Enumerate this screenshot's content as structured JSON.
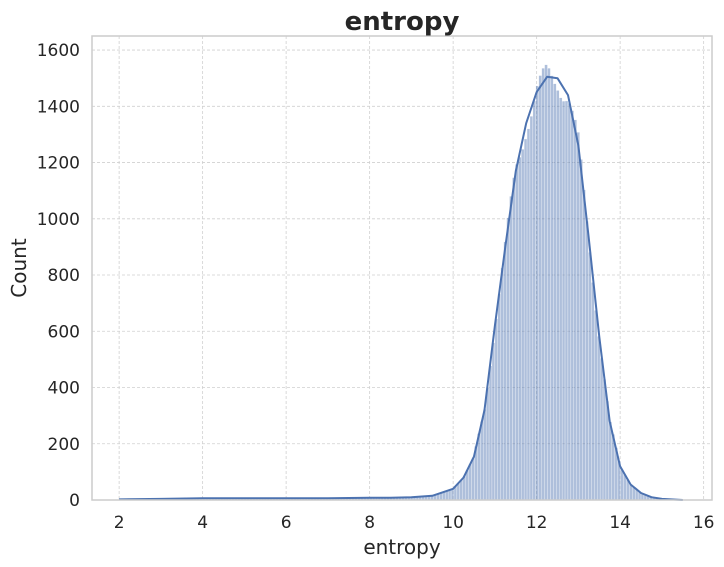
{
  "chart_data": {
    "type": "bar",
    "title": "entropy",
    "xlabel": "entropy",
    "ylabel": "Count",
    "xlim": [
      1.35,
      16.2
    ],
    "ylim": [
      0,
      1650
    ],
    "xticks": [
      2,
      4,
      6,
      8,
      10,
      12,
      14,
      16
    ],
    "yticks": [
      0,
      200,
      400,
      600,
      800,
      1000,
      1200,
      1400,
      1600
    ],
    "grid": true,
    "legend": "none",
    "bar_color": "#4c72b0",
    "kde_color": "#4c72b0",
    "histogram_profile_x": [
      2.0,
      3.0,
      4.0,
      5.0,
      6.0,
      7.0,
      8.0,
      8.5,
      9.0,
      9.5,
      10.0,
      10.25,
      10.5,
      10.75,
      11.0,
      11.25,
      11.5,
      11.75,
      12.0,
      12.25,
      12.5,
      12.75,
      13.0,
      13.25,
      13.5,
      13.75,
      14.0,
      14.25,
      14.5,
      14.75,
      15.0,
      15.5
    ],
    "histogram_profile_count": [
      2,
      4,
      6,
      6,
      6,
      6,
      8,
      8,
      10,
      15,
      40,
      80,
      155,
      320,
      620,
      900,
      1170,
      1340,
      1450,
      1505,
      1500,
      1440,
      1260,
      930,
      580,
      280,
      120,
      55,
      25,
      10,
      4,
      0
    ],
    "kde_x": [
      2.0,
      3.0,
      4.0,
      5.0,
      6.0,
      7.0,
      8.0,
      8.5,
      9.0,
      9.5,
      10.0,
      10.25,
      10.5,
      10.75,
      11.0,
      11.25,
      11.5,
      11.75,
      12.0,
      12.25,
      12.5,
      12.75,
      13.0,
      13.25,
      13.5,
      13.75,
      14.0,
      14.25,
      14.5,
      14.75,
      15.0,
      15.5
    ],
    "kde_y": [
      2,
      4,
      6,
      6,
      6,
      6,
      8,
      8,
      10,
      15,
      40,
      80,
      155,
      320,
      620,
      900,
      1170,
      1340,
      1450,
      1505,
      1500,
      1440,
      1260,
      930,
      580,
      280,
      120,
      55,
      25,
      10,
      4,
      0
    ]
  }
}
